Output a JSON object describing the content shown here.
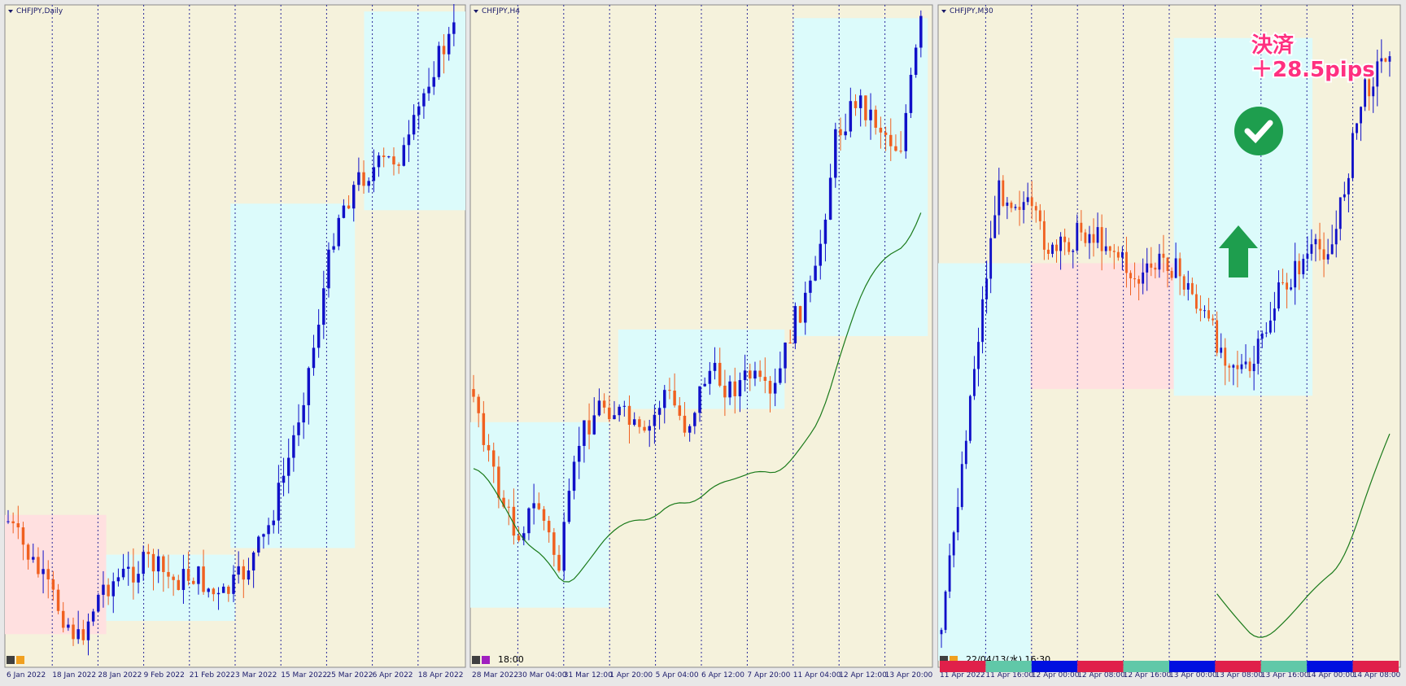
{
  "panels": [
    {
      "title": "CHFJPY,Daily",
      "x_labels": [
        "6 Jan 2022",
        "18 Jan 2022",
        "28 Jan 2022",
        "9 Feb 2022",
        "21 Feb 2022",
        "3 Mar 2022",
        "15 Mar 2022",
        "25 Mar 2022",
        "6 Apr 2022",
        "18 Apr 2022"
      ]
    },
    {
      "title": "CHFJPY,H4",
      "time_label": "18:00",
      "x_labels": [
        "28 Mar 2022",
        "30 Mar 04:00",
        "31 Mar 12:00",
        "1 Apr 20:00",
        "5 Apr 04:00",
        "6 Apr 12:00",
        "7 Apr 20:00",
        "11 Apr 04:00",
        "12 Apr 12:00",
        "13 Apr 20:00"
      ]
    },
    {
      "title": "CHFJPY,M30",
      "time_label": "22/04/13(水) 16:30",
      "annotation": [
        "決済",
        "＋28.5pips"
      ],
      "x_labels": [
        "11 Apr 2022",
        "11 Apr 16:00",
        "12 Apr 00:00",
        "12 Apr 08:00",
        "12 Apr 16:00",
        "13 Apr 00:00",
        "13 Apr 08:00",
        "13 Apr 16:00",
        "14 Apr 00:00",
        "14 Apr 08:00"
      ]
    }
  ]
}
